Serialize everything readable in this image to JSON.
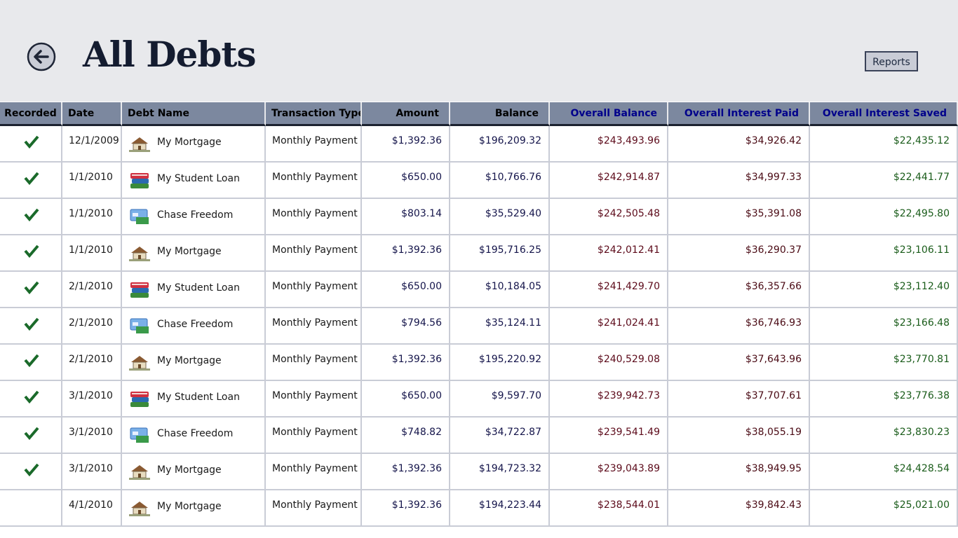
{
  "header": {
    "title": "All Debts",
    "button": "Reports"
  },
  "table": {
    "columns": [
      "Recorded",
      "Date",
      "Debt Name",
      "Transaction Type",
      "Amount",
      "Balance",
      "Overall Balance",
      "Overall Interest Paid",
      "Overall Interest Saved"
    ],
    "rows": [
      {
        "recorded": true,
        "date": "12/1/2009",
        "name": "My Mortgage",
        "type": "Monthly Payment",
        "amount": "$1,392.36",
        "balance": "$196,209.32",
        "overall_balance": "$243,493.96",
        "interest_paid": "$34,926.42",
        "interest_saved": "$22,435.12"
      },
      {
        "recorded": true,
        "date": "1/1/2010",
        "name": "My Student Loan",
        "type": "Monthly Payment",
        "amount": "$650.00",
        "balance": "$10,766.76",
        "overall_balance": "$242,914.87",
        "interest_paid": "$34,997.33",
        "interest_saved": "$22,441.77"
      },
      {
        "recorded": true,
        "date": "1/1/2010",
        "name": "Chase Freedom",
        "type": "Monthly Payment",
        "amount": "$803.14",
        "balance": "$35,529.40",
        "overall_balance": "$242,505.48",
        "interest_paid": "$35,391.08",
        "interest_saved": "$22,495.80"
      },
      {
        "recorded": true,
        "date": "1/1/2010",
        "name": "My Mortgage",
        "type": "Monthly Payment",
        "amount": "$1,392.36",
        "balance": "$195,716.25",
        "overall_balance": "$242,012.41",
        "interest_paid": "$36,290.37",
        "interest_saved": "$23,106.11"
      },
      {
        "recorded": true,
        "date": "2/1/2010",
        "name": "My Student Loan",
        "type": "Monthly Payment",
        "amount": "$650.00",
        "balance": "$10,184.05",
        "overall_balance": "$241,429.70",
        "interest_paid": "$36,357.66",
        "interest_saved": "$23,112.40"
      },
      {
        "recorded": true,
        "date": "2/1/2010",
        "name": "Chase Freedom",
        "type": "Monthly Payment",
        "amount": "$794.56",
        "balance": "$35,124.11",
        "overall_balance": "$241,024.41",
        "interest_paid": "$36,746.93",
        "interest_saved": "$23,166.48"
      },
      {
        "recorded": true,
        "date": "2/1/2010",
        "name": "My Mortgage",
        "type": "Monthly Payment",
        "amount": "$1,392.36",
        "balance": "$195,220.92",
        "overall_balance": "$240,529.08",
        "interest_paid": "$37,643.96",
        "interest_saved": "$23,770.81"
      },
      {
        "recorded": true,
        "date": "3/1/2010",
        "name": "My Student Loan",
        "type": "Monthly Payment",
        "amount": "$650.00",
        "balance": "$9,597.70",
        "overall_balance": "$239,942.73",
        "interest_paid": "$37,707.61",
        "interest_saved": "$23,776.38"
      },
      {
        "recorded": true,
        "date": "3/1/2010",
        "name": "Chase Freedom",
        "type": "Monthly Payment",
        "amount": "$748.82",
        "balance": "$34,722.87",
        "overall_balance": "$239,541.49",
        "interest_paid": "$38,055.19",
        "interest_saved": "$23,830.23"
      },
      {
        "recorded": true,
        "date": "3/1/2010",
        "name": "My Mortgage",
        "type": "Monthly Payment",
        "amount": "$1,392.36",
        "balance": "$194,723.32",
        "overall_balance": "$239,043.89",
        "interest_paid": "$38,949.95",
        "interest_saved": "$24,428.54"
      },
      {
        "recorded": false,
        "date": "4/1/2010",
        "name": "My Mortgage",
        "type": "Monthly Payment",
        "amount": "$1,392.36",
        "balance": "$194,223.44",
        "overall_balance": "$238,544.01",
        "interest_paid": "$39,842.43",
        "interest_saved": "$25,021.00"
      }
    ]
  }
}
